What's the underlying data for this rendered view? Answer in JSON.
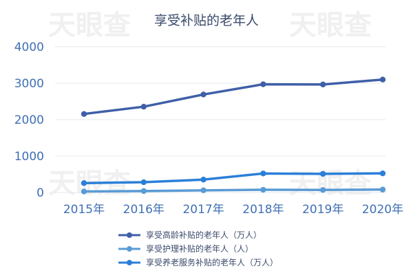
{
  "chart_data": {
    "type": "line",
    "title": "享受补贴的老年人",
    "categories": [
      "2015年",
      "2016年",
      "2017年",
      "2018年",
      "2019年",
      "2020年"
    ],
    "ylim": [
      0,
      4000
    ],
    "yticks": [
      "0",
      "1000",
      "2000",
      "3000",
      "4000"
    ],
    "grid": true,
    "legend_position": "bottom",
    "series": [
      {
        "name": "享受高龄补贴的老年人（万人）",
        "color": "#3f5fa8",
        "values": [
          2155,
          2355,
          2690,
          2970,
          2965,
          3100
        ]
      },
      {
        "name": "享受护理补贴的老年人（人）",
        "color": "#5a9bd5",
        "values": [
          27,
          40,
          60,
          75,
          70,
          80
        ]
      },
      {
        "name": "享受养老服务补贴的老年人（万人）",
        "color": "#2b7fd8",
        "values": [
          258,
          282,
          354,
          522,
          512,
          525
        ]
      }
    ]
  }
}
